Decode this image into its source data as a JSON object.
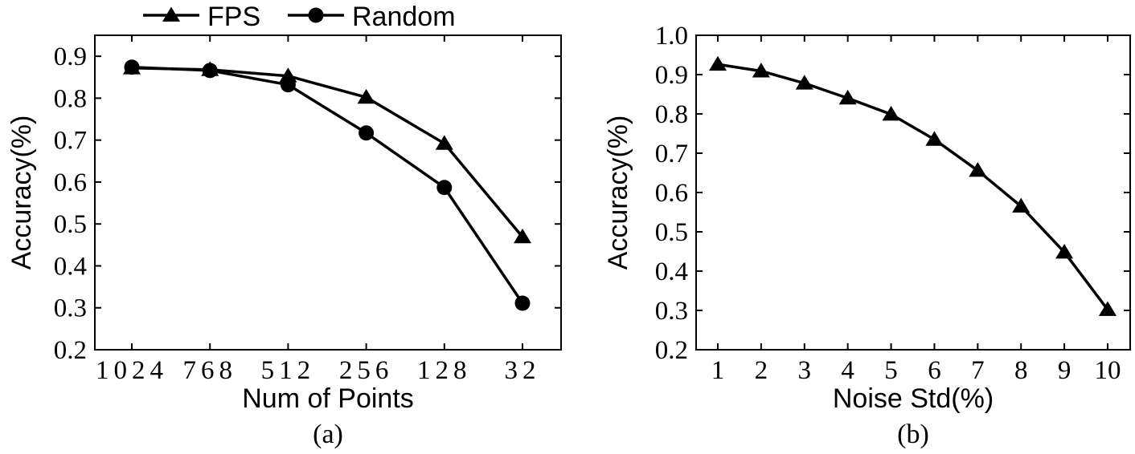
{
  "chart_data": [
    {
      "type": "line",
      "caption": "(a)",
      "xlabel": "Num of Points",
      "ylabel": "Accuracy(%)",
      "categories": [
        "1024",
        "768",
        "512",
        "256",
        "128",
        "32"
      ],
      "ylim": [
        0.2,
        0.95
      ],
      "yticks": [
        "0.2",
        "0.3",
        "0.4",
        "0.5",
        "0.6",
        "0.7",
        "0.8",
        "0.9"
      ],
      "ytick_values": [
        0.2,
        0.3,
        0.4,
        0.5,
        0.6,
        0.7,
        0.8,
        0.9
      ],
      "grid": false,
      "legend": "top-center",
      "series": [
        {
          "name": "FPS",
          "marker": "triangle",
          "values": [
            0.872,
            0.868,
            0.853,
            0.802,
            0.692,
            0.469
          ]
        },
        {
          "name": "Random",
          "marker": "circle",
          "values": [
            0.874,
            0.866,
            0.832,
            0.717,
            0.587,
            0.311
          ]
        }
      ]
    },
    {
      "type": "line",
      "caption": "(b)",
      "xlabel": "Noise Std(%)",
      "ylabel": "Accuracy(%)",
      "categories": [
        "1",
        "2",
        "3",
        "4",
        "5",
        "6",
        "7",
        "8",
        "9",
        "10"
      ],
      "ylim": [
        0.2,
        1.0
      ],
      "yticks": [
        "0.2",
        "0.3",
        "0.4",
        "0.5",
        "0.6",
        "0.7",
        "0.8",
        "0.9",
        "1.0"
      ],
      "ytick_values": [
        0.2,
        0.3,
        0.4,
        0.5,
        0.6,
        0.7,
        0.8,
        0.9,
        1.0
      ],
      "grid": false,
      "series": [
        {
          "marker": "triangle",
          "values": [
            0.926,
            0.909,
            0.878,
            0.84,
            0.799,
            0.735,
            0.656,
            0.565,
            0.448,
            0.302
          ]
        }
      ]
    }
  ]
}
